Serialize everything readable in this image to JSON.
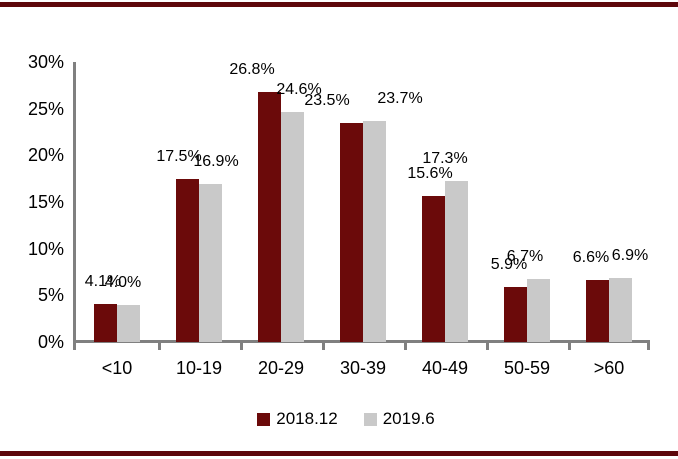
{
  "colors": {
    "series1": "#6B0A0A",
    "series2": "#C9C9C9",
    "rule": "#5E070B",
    "axis": "#808080",
    "text": "#000000"
  },
  "chart_data": {
    "type": "bar",
    "categories": [
      "<10",
      "10-19",
      "20-29",
      "30-39",
      "40-49",
      "50-59",
      ">60"
    ],
    "series": [
      {
        "name": "2018.12",
        "color": "#6B0A0A",
        "values": [
          4.1,
          17.5,
          26.8,
          23.5,
          15.6,
          5.9,
          6.6
        ],
        "labels": [
          "4.1%",
          "17.5%",
          "26.8%",
          "23.5%",
          "15.6%",
          "5.9%",
          "6.6%"
        ]
      },
      {
        "name": "2019.6",
        "color": "#C9C9C9",
        "values": [
          4.0,
          16.9,
          24.6,
          23.7,
          17.3,
          6.7,
          6.9
        ],
        "labels": [
          "4.0%",
          "16.9%",
          "24.6%",
          "23.7%",
          "17.3%",
          "6.7%",
          "6.9%"
        ]
      }
    ],
    "title": "",
    "xlabel": "",
    "ylabel": "",
    "y_axis": {
      "min": 0,
      "max": 30,
      "step": 5,
      "tick_labels": [
        "0%",
        "5%",
        "10%",
        "15%",
        "20%",
        "25%",
        "30%"
      ]
    },
    "grid": false,
    "legend_position": "bottom",
    "data_labels_visible": true
  }
}
